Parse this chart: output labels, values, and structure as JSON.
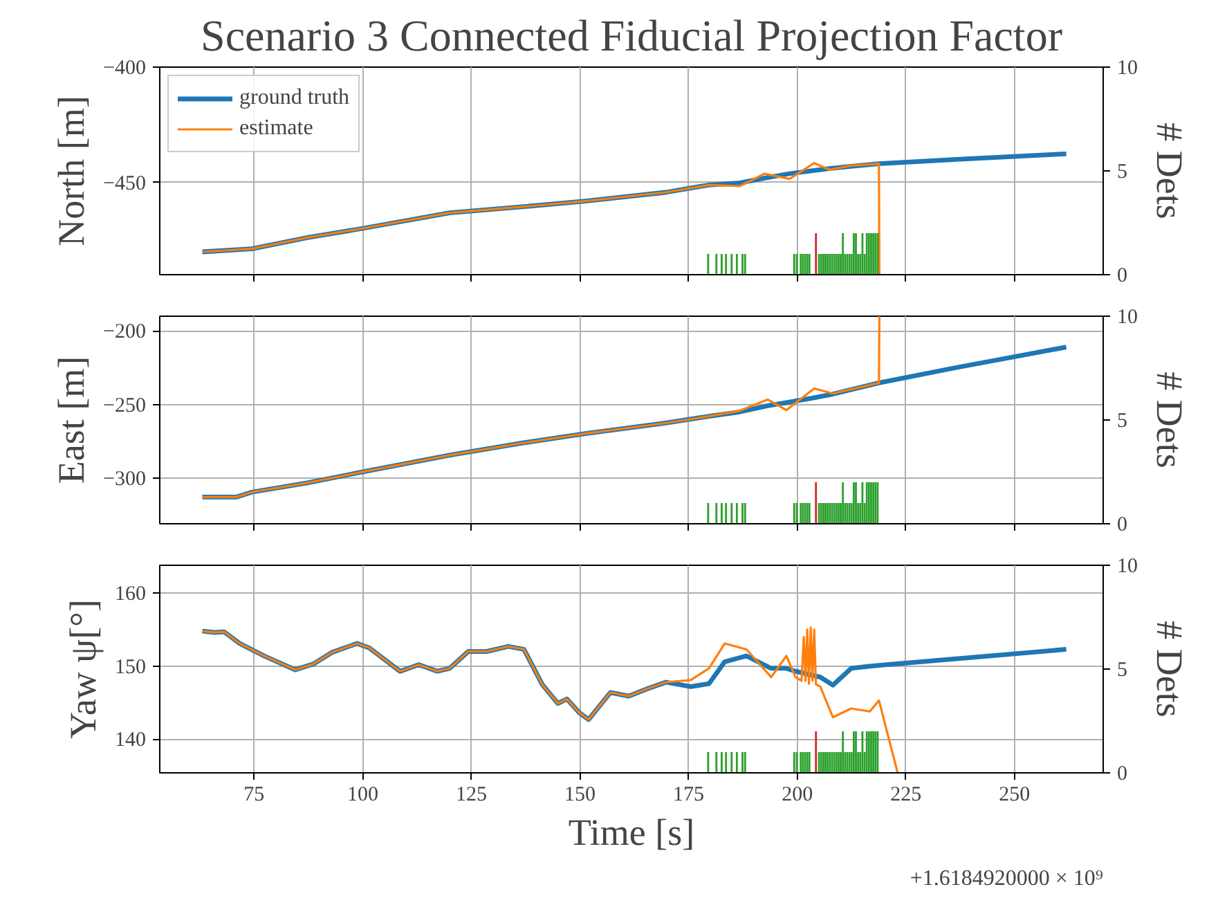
{
  "chart_data": [
    {
      "type": "line",
      "title": "Scenario 3 Connected Fiducial Projection Factor",
      "ylabel": "North [m]",
      "y2label": "# Dets",
      "xlim": [
        53.3,
        270.4
      ],
      "xticks": [
        75,
        100,
        125,
        150,
        175,
        200,
        225,
        250
      ],
      "ylim": [
        -490,
        -400
      ],
      "yticks": [
        -450,
        -400
      ],
      "y2lim": [
        0,
        10
      ],
      "y2ticks": [
        0,
        5,
        10
      ],
      "grid": true,
      "legend": "top left",
      "tick_labels": "y",
      "series": [
        {
          "name": "ground truth",
          "color": "#1f77b4",
          "x": [
            63.1,
            74.5,
            87.3,
            100.1,
            120,
            137.1,
            151.3,
            169.7,
            179.7,
            186.8,
            192.5,
            198.2,
            203.9,
            207.4,
            212.4,
            218.8,
            236.6,
            261.9
          ],
          "values": [
            -480.1,
            -478.8,
            -473.9,
            -469.9,
            -463.2,
            -460.5,
            -458.1,
            -454.3,
            -451.1,
            -450.2,
            -448.1,
            -446.2,
            -444.8,
            -444.0,
            -443.0,
            -441.9,
            -440.0,
            -437.6
          ]
        },
        {
          "name": "estimate",
          "color": "#ff7f0e",
          "x": [
            63.1,
            74.5,
            87.3,
            100.1,
            120,
            137.1,
            151.3,
            169.7,
            179.7,
            186.8,
            192.5,
            198.2,
            203.9,
            207.4,
            212.4,
            218.8,
            218.9
          ],
          "values": [
            -480.1,
            -478.8,
            -473.9,
            -469.9,
            -463.2,
            -460.5,
            -458.1,
            -454.3,
            -451.1,
            -451.6,
            -446.2,
            -448.5,
            -441.6,
            -444.5,
            -442.7,
            -441.9,
            -490
          ]
        },
        {
          "type": "bar",
          "axis": "y2",
          "color": "#2ca02c",
          "x": [
            179.5,
            181.4,
            182.6,
            183.6,
            184.9,
            186.1,
            187.4,
            188.0,
            199.3,
            199.9,
            200.8,
            201.3,
            201.8,
            202.3,
            202.8,
            205.0,
            205.5,
            206.0,
            206.5,
            207.0,
            207.5,
            208.0,
            208.5,
            209.0,
            209.5,
            210.0,
            210.5,
            211.0,
            211.5,
            212.0,
            212.5,
            213.0,
            213.5,
            214.0,
            214.5,
            215.0,
            215.5,
            216.0,
            216.5,
            217.0,
            217.5,
            218.0,
            218.5
          ],
          "values": [
            1,
            1,
            1,
            1,
            1,
            1,
            1,
            1,
            1,
            1,
            1,
            1,
            1,
            1,
            1,
            1,
            1,
            1,
            1,
            1,
            1,
            1,
            1,
            1,
            1,
            1,
            2,
            1,
            1,
            1,
            1,
            2,
            2,
            1,
            1,
            2,
            1,
            2,
            2,
            2,
            2,
            2,
            2
          ]
        },
        {
          "type": "bar",
          "axis": "y2",
          "color": "#d62728",
          "x": [
            204.3
          ],
          "values": [
            2
          ]
        }
      ]
    },
    {
      "type": "line",
      "ylabel": "East [m]",
      "y2label": "# Dets",
      "xlim": [
        53.3,
        270.4
      ],
      "xticks": [
        75,
        100,
        125,
        150,
        175,
        200,
        225,
        250
      ],
      "ylim": [
        -331,
        -190
      ],
      "yticks": [
        -300,
        -250,
        -200
      ],
      "y2lim": [
        0,
        10
      ],
      "y2ticks": [
        0,
        5,
        10
      ],
      "grid": true,
      "tick_labels": "y",
      "series": [
        {
          "color": "#1f77b4",
          "x": [
            63.1,
            71,
            74.5,
            87.3,
            100.1,
            120,
            137.1,
            151.3,
            169.7,
            179.7,
            186.8,
            193.2,
            197.5,
            203.9,
            208.2,
            218.8,
            236.6,
            261.9
          ],
          "values": [
            -312.8,
            -312.8,
            -309.5,
            -303.2,
            -295.7,
            -284.4,
            -276,
            -269.7,
            -262.6,
            -258,
            -255,
            -250.8,
            -248.7,
            -245.4,
            -242.9,
            -235.3,
            -224.9,
            -211
          ]
        },
        {
          "color": "#ff7f0e",
          "x": [
            63.1,
            71,
            74.5,
            87.3,
            100.1,
            120,
            137.1,
            151.3,
            169.7,
            179.7,
            186.8,
            193.2,
            197.5,
            203.9,
            208.2,
            218.8,
            218.9
          ],
          "values": [
            -312.8,
            -312.8,
            -309.5,
            -303.2,
            -295.7,
            -284.4,
            -276,
            -269.7,
            -262.6,
            -258,
            -254.2,
            -246.6,
            -253.8,
            -239.1,
            -242.5,
            -235.3,
            -190
          ]
        },
        {
          "type": "bar",
          "axis": "y2",
          "color": "#2ca02c",
          "x": [
            179.5,
            181.4,
            182.6,
            183.6,
            184.9,
            186.1,
            187.4,
            188.0,
            199.3,
            199.9,
            200.8,
            201.3,
            201.8,
            202.3,
            202.8,
            205.0,
            205.5,
            206.0,
            206.5,
            207.0,
            207.5,
            208.0,
            208.5,
            209.0,
            209.5,
            210.0,
            210.5,
            211.0,
            211.5,
            212.0,
            212.5,
            213.0,
            213.5,
            214.0,
            214.5,
            215.0,
            215.5,
            216.0,
            216.5,
            217.0,
            217.5,
            218.0,
            218.5
          ],
          "values": [
            1,
            1,
            1,
            1,
            1,
            1,
            1,
            1,
            1,
            1,
            1,
            1,
            1,
            1,
            1,
            1,
            1,
            1,
            1,
            1,
            1,
            1,
            1,
            1,
            1,
            1,
            2,
            1,
            1,
            1,
            1,
            2,
            2,
            1,
            1,
            2,
            1,
            2,
            2,
            2,
            2,
            2,
            2
          ]
        },
        {
          "type": "bar",
          "axis": "y2",
          "color": "#d62728",
          "x": [
            204.3
          ],
          "values": [
            2
          ]
        }
      ]
    },
    {
      "type": "line",
      "xlabel": "Time [s]",
      "ylabel": "Yaw ψ[°]",
      "y2label": "# Dets",
      "annotations": [
        "+1.6184920000 × 10⁹"
      ],
      "xlim": [
        53.3,
        270.4
      ],
      "xticks": [
        75,
        100,
        125,
        150,
        175,
        200,
        225,
        250
      ],
      "ylim": [
        135.4,
        163.8
      ],
      "yticks": [
        140,
        150,
        160
      ],
      "y2lim": [
        0,
        10
      ],
      "y2ticks": [
        0,
        5,
        10
      ],
      "grid": true,
      "series": [
        {
          "color": "#1f77b4",
          "x": [
            63.1,
            66.0,
            68.1,
            71.7,
            77.3,
            84.5,
            88.7,
            93.0,
            98.7,
            101.5,
            108.6,
            112.9,
            117.2,
            120.0,
            124.3,
            128.5,
            133.5,
            137.1,
            141.3,
            144.9,
            147.0,
            149.9,
            152.0,
            157.0,
            161.2,
            165.5,
            169.8,
            175.5,
            179.7,
            183.3,
            188.3,
            194.0,
            197.5,
            199.6,
            205.3,
            208.2,
            212.4,
            216.7,
            218.8,
            236.6,
            261.9
          ],
          "values": [
            154.8,
            154.6,
            154.7,
            153.1,
            151.4,
            149.5,
            150.3,
            151.9,
            153.1,
            152.5,
            149.3,
            150.2,
            149.3,
            149.7,
            152.0,
            152.0,
            152.7,
            152.3,
            147.5,
            144.9,
            145.5,
            143.6,
            142.7,
            146.4,
            145.9,
            146.9,
            147.8,
            147.2,
            147.6,
            150.6,
            151.4,
            149.7,
            149.7,
            149.3,
            148.5,
            147.4,
            149.7,
            150.0,
            150.1,
            151.0,
            152.3
          ]
        },
        {
          "color": "#ff7f0e",
          "x": [
            63.1,
            66.0,
            68.1,
            71.7,
            77.3,
            84.5,
            88.7,
            93.0,
            98.7,
            101.5,
            108.6,
            112.9,
            117.2,
            120.0,
            124.3,
            128.5,
            133.5,
            137.1,
            141.3,
            144.9,
            147.0,
            149.9,
            152.0,
            157.0,
            161.2,
            165.5,
            169.8,
            175.5,
            179.7,
            183.3,
            188.3,
            194.0,
            197.5,
            199.6,
            201.0,
            201.5,
            201.9,
            202.3,
            202.7,
            203.1,
            203.5,
            203.9,
            204.3,
            205.3,
            208.2,
            212.4,
            216.7,
            218.8,
            223.1
          ],
          "values": [
            154.8,
            154.6,
            154.7,
            153.1,
            151.4,
            149.5,
            150.3,
            151.9,
            153.1,
            152.5,
            149.3,
            150.2,
            149.3,
            149.7,
            152.0,
            152.0,
            152.7,
            152.3,
            147.5,
            144.9,
            145.5,
            143.6,
            142.7,
            146.4,
            145.9,
            146.9,
            147.8,
            148.1,
            149.7,
            153.1,
            152.3,
            148.5,
            151.4,
            148.5,
            148.0,
            154.0,
            148.0,
            155.0,
            147.6,
            155.3,
            148.0,
            155.0,
            147.5,
            147.2,
            143.0,
            144.2,
            143.8,
            145.3,
            135.4
          ]
        },
        {
          "type": "bar",
          "axis": "y2",
          "color": "#2ca02c",
          "x": [
            179.5,
            181.4,
            182.6,
            183.6,
            184.9,
            186.1,
            187.4,
            188.0,
            199.3,
            199.9,
            200.8,
            201.3,
            201.8,
            202.3,
            202.8,
            205.0,
            205.5,
            206.0,
            206.5,
            207.0,
            207.5,
            208.0,
            208.5,
            209.0,
            209.5,
            210.0,
            210.5,
            211.0,
            211.5,
            212.0,
            212.5,
            213.0,
            213.5,
            214.0,
            214.5,
            215.0,
            215.5,
            216.0,
            216.5,
            217.0,
            217.5,
            218.0,
            218.5
          ],
          "values": [
            1,
            1,
            1,
            1,
            1,
            1,
            1,
            1,
            1,
            1,
            1,
            1,
            1,
            1,
            1,
            1,
            1,
            1,
            1,
            1,
            1,
            1,
            1,
            1,
            1,
            1,
            2,
            1,
            1,
            1,
            1,
            2,
            2,
            1,
            1,
            2,
            1,
            2,
            2,
            2,
            2,
            2,
            2
          ]
        },
        {
          "type": "bar",
          "axis": "y2",
          "color": "#d62728",
          "x": [
            204.3
          ],
          "values": [
            2
          ]
        }
      ]
    }
  ]
}
